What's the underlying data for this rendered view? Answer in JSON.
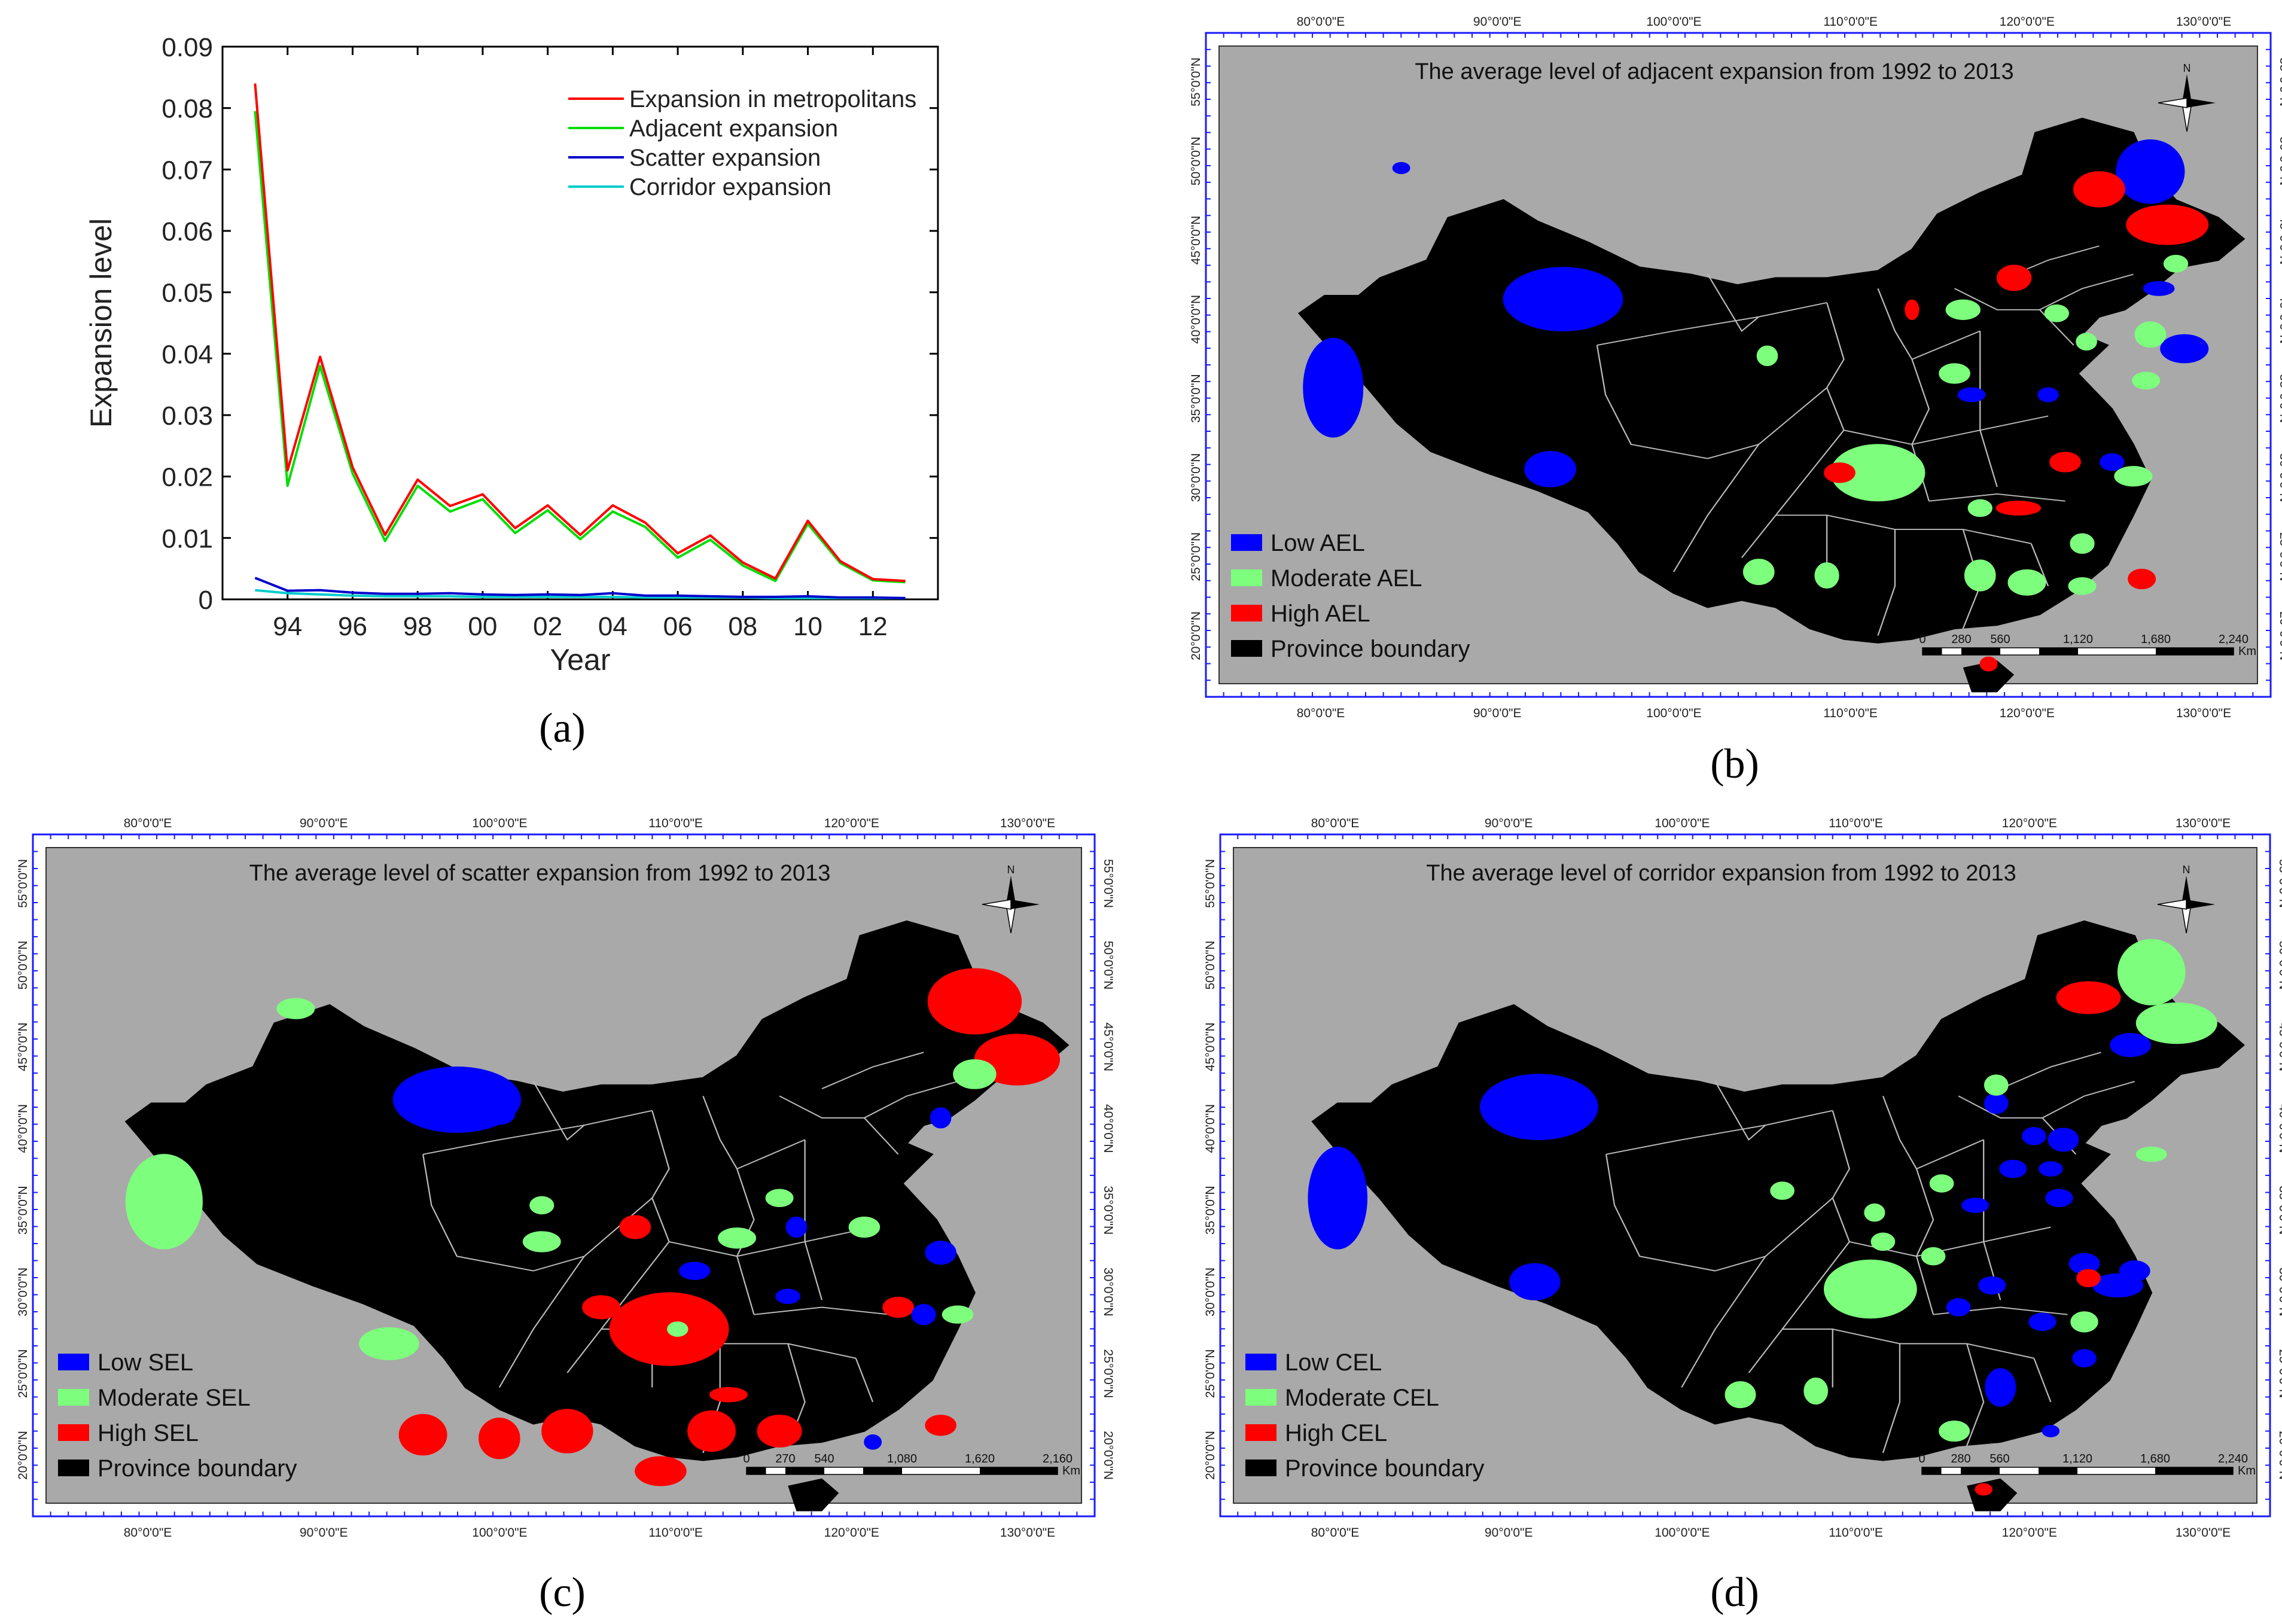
{
  "panel_a": {
    "caption": "(a)",
    "chart_data": {
      "type": "line",
      "title": "",
      "xlabel": "Year",
      "ylabel": "Expansion level",
      "x": [
        93,
        94,
        95,
        96,
        97,
        98,
        99,
        100,
        101,
        102,
        103,
        104,
        105,
        106,
        107,
        108,
        109,
        110,
        111,
        112,
        113
      ],
      "xlim": [
        92,
        114
      ],
      "ylim": [
        0,
        0.09
      ],
      "xticks": [
        94,
        96,
        98,
        100,
        102,
        104,
        106,
        108,
        110,
        112
      ],
      "xtick_labels": [
        "94",
        "96",
        "98",
        "00",
        "02",
        "04",
        "06",
        "08",
        "10",
        "12"
      ],
      "yticks": [
        0,
        0.01,
        0.02,
        0.03,
        0.04,
        0.05,
        0.06,
        0.07,
        0.08,
        0.09
      ],
      "ytick_labels": [
        "0",
        "0.01",
        "0.02",
        "0.03",
        "0.04",
        "0.05",
        "0.06",
        "0.07",
        "0.08",
        "0.09"
      ],
      "legend_position": "top-right",
      "series": [
        {
          "name": "Expansion in metropolitans",
          "color": "#ff0000",
          "values": [
            0.084,
            0.021,
            0.0395,
            0.0215,
            0.0105,
            0.0195,
            0.0152,
            0.0171,
            0.0116,
            0.0153,
            0.0105,
            0.0153,
            0.0125,
            0.0075,
            0.0104,
            0.006,
            0.0034,
            0.0128,
            0.0062,
            0.0033,
            0.003
          ]
        },
        {
          "name": "Adjacent expansion",
          "color": "#00dd00",
          "values": [
            0.0795,
            0.0185,
            0.038,
            0.0205,
            0.0095,
            0.0185,
            0.0143,
            0.0163,
            0.0108,
            0.0145,
            0.0098,
            0.0143,
            0.0118,
            0.0068,
            0.0097,
            0.0055,
            0.003,
            0.0123,
            0.0059,
            0.0031,
            0.0028
          ]
        },
        {
          "name": "Scatter expansion",
          "color": "#0000cc",
          "values": [
            0.0035,
            0.0014,
            0.0015,
            0.0011,
            0.0009,
            0.0009,
            0.001,
            0.0008,
            0.0007,
            0.0008,
            0.0007,
            0.001,
            0.0006,
            0.0006,
            0.0005,
            0.0004,
            0.0004,
            0.0005,
            0.0003,
            0.0003,
            0.0002
          ]
        },
        {
          "name": "Corridor expansion",
          "color": "#00cccc",
          "values": [
            0.0015,
            0.001,
            0.0008,
            0.0006,
            0.0005,
            0.0005,
            0.0005,
            0.0004,
            0.0004,
            0.0004,
            0.0004,
            0.0004,
            0.0003,
            0.0003,
            0.0003,
            0.0003,
            0.0002,
            0.0002,
            0.0002,
            0.0002,
            0.0002
          ]
        }
      ]
    }
  },
  "maps": [
    {
      "caption": "(b)",
      "title": "The average level of adjacent expansion from 1992 to 2013",
      "legend": [
        "Low AEL",
        "Moderate AEL",
        "High AEL",
        "Province boundary"
      ],
      "scale_labels": [
        "0",
        "280",
        "560",
        "1,120",
        "1,680",
        "2,240"
      ],
      "scale_unit": "Km",
      "north_label": "N"
    },
    {
      "caption": "(c)",
      "title": "The average level of scatter expansion from 1992 to 2013",
      "legend": [
        "Low SEL",
        "Moderate SEL",
        "High SEL",
        "Province boundary"
      ],
      "scale_labels": [
        "0",
        "270",
        "540",
        "1,080",
        "1,620",
        "2,160"
      ],
      "scale_unit": "Km",
      "north_label": "N"
    },
    {
      "caption": "(d)",
      "title": "The average level of corridor expansion from 1992 to 2013",
      "legend": [
        "Low CEL",
        "Moderate CEL",
        "High CEL",
        "Province boundary"
      ],
      "scale_labels": [
        "0",
        "280",
        "560",
        "1,120",
        "1,680",
        "2,240"
      ],
      "scale_unit": "Km",
      "north_label": "N"
    }
  ],
  "map_axes": {
    "lon_labels": [
      "80°0'0\"E",
      "90°0'0\"E",
      "100°0'0\"E",
      "110°0'0\"E",
      "120°0'0\"E",
      "130°0'0\"E"
    ],
    "lat_labels": [
      "55°0'0\"N",
      "50°0'0\"N",
      "45°0'0\"N",
      "40°0'0\"N",
      "35°0'0\"N",
      "30°0'0\"N",
      "25°0'0\"N",
      "20°0'0\"N"
    ]
  },
  "colors": {
    "low": "#0000ff",
    "moderate": "#7dff7d",
    "high": "#ff0000",
    "boundary": "#000000",
    "map_bg": "#a9a9a9",
    "frame": "#1a1aff"
  }
}
